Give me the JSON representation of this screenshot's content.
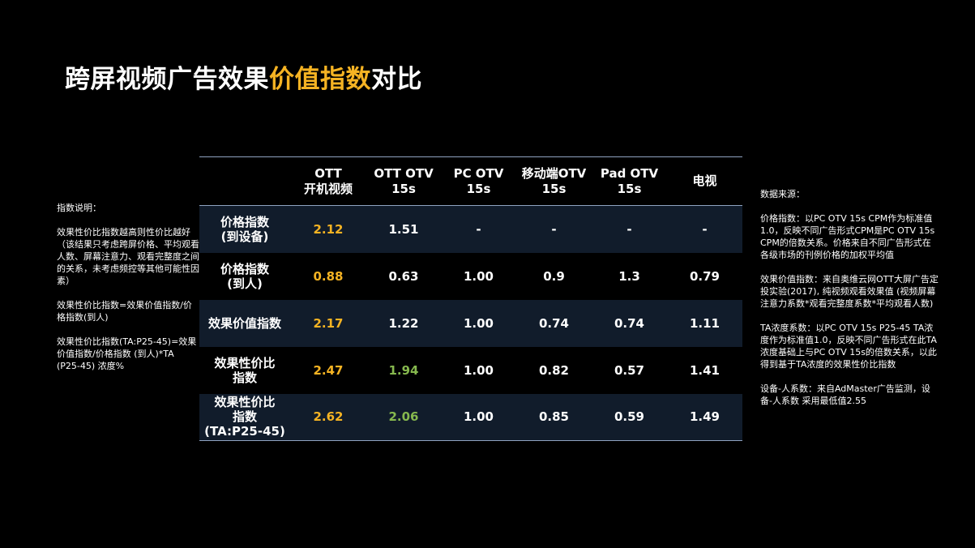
{
  "title": {
    "main": "跨屏视频广告效果",
    "highlight": "价值指数",
    "suffix": "对比"
  },
  "left_note": [
    "指数说明：",
    "效果性价比指数越高则性价比越好（该结果只考虑跨屏价格、平均观看人数、屏幕注意力、观看完整度之间的关系，未考虑频控等其他可能性因素）",
    "效果性价比指数=效果价值指数/价格指数(到人)",
    "效果性价比指数(TA:P25-45)=效果价值指数/价格指数 (到人)*TA (P25-45) 浓度%"
  ],
  "right_note": [
    "数据来源：",
    "价格指数：以PC OTV 15s CPM作为标准值1.0，反映不同广告形式CPM是PC OTV 15s CPM的倍数关系。价格来自不同广告形式在各级市场的刊例价格的加权平均值",
    "效果价值指数：来自奥维云网OTT大屏广告定投实验(2017), 纯视频观看效果值 (视频屏幕注意力系数*观看完整度系数*平均观看人数)",
    "TA浓度系数：以PC OTV 15s P25-45 TA浓度作为标准值1.0，反映不同广告形式在此TA浓度基础上与PC OTV 15s的倍数关系，以此得到基于TA浓度的效果性价比指数",
    "设备-人系数：来自AdMaster广告监测，设备-人系数 采用最低值2.55"
  ],
  "table": {
    "headers": [
      "",
      "OTT\n开机视频",
      "OTT OTV\n15s",
      "PC OTV\n15s",
      "移动端OTV\n15s",
      "Pad OTV\n15s",
      "电视"
    ],
    "rows": [
      {
        "label": "价格指数\n(到设备)",
        "values": [
          "2.12",
          "1.51",
          "-",
          "-",
          "-",
          "-"
        ]
      },
      {
        "label": "价格指数\n(到人)",
        "values": [
          "0.88",
          "0.63",
          "1.00",
          "0.9",
          "1.3",
          "0.79"
        ]
      },
      {
        "label": "效果价值指数",
        "values": [
          "2.17",
          "1.22",
          "1.00",
          "0.74",
          "0.74",
          "1.11"
        ]
      },
      {
        "label": "效果性价比\n指数",
        "values": [
          "2.47",
          "1.94",
          "1.00",
          "0.82",
          "0.57",
          "1.41"
        ]
      },
      {
        "label": "效果性价比\n指数\n(TA:P25-45)",
        "values": [
          "2.62",
          "2.06",
          "1.00",
          "0.85",
          "0.59",
          "1.49"
        ]
      }
    ]
  },
  "colors": {
    "highlight": "#f5b323",
    "positive": "#86b84e",
    "row_shade": "#111c2b",
    "rule": "#8fa3c0"
  }
}
